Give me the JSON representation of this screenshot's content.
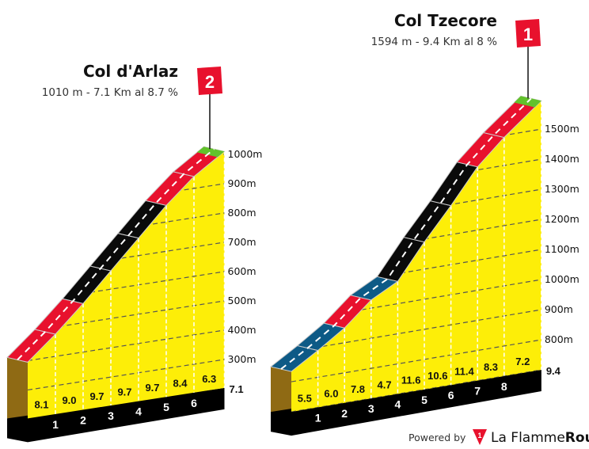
{
  "chart_data": [
    {
      "type": "area",
      "title": "Col d'Arlaz",
      "subtitle": "1010 m - 7.1 Km al 8.7 %",
      "rank": "2",
      "summit_altitude_m": 1010,
      "total_km": 7.1,
      "total_label": "7.1",
      "km_labels": [
        "1",
        "2",
        "3",
        "4",
        "5",
        "6"
      ],
      "gradients": [
        "8.1",
        "9.0",
        "9.7",
        "9.7",
        "9.7",
        "8.4",
        "6.3"
      ],
      "segment_colors": [
        "#e8112d",
        "#e8112d",
        "#0a0a0a",
        "#0a0a0a",
        "#0a0a0a",
        "#e8112d",
        "#e8112d"
      ],
      "y_ticks": [
        300,
        400,
        500,
        600,
        700,
        800,
        900,
        1000
      ],
      "y_tick_labels": [
        "300m",
        "400m",
        "500m",
        "600m",
        "700m",
        "800m",
        "900m",
        "1000m"
      ],
      "grid": true
    },
    {
      "type": "area",
      "title": "Col Tzecore",
      "subtitle": "1594 m - 9.4 Km al 8 %",
      "rank": "1",
      "summit_altitude_m": 1594,
      "total_km": 9.4,
      "total_label": "9.4",
      "km_labels": [
        "1",
        "2",
        "3",
        "4",
        "5",
        "6",
        "7",
        "8"
      ],
      "gradients": [
        "5.5",
        "6.0",
        "7.8",
        "4.7",
        "11.6",
        "10.6",
        "11.4",
        "8.3",
        "7.2"
      ],
      "segment_colors": [
        "#0d5a86",
        "#0d5a86",
        "#e8112d",
        "#0d5a86",
        "#0a0a0a",
        "#0a0a0a",
        "#0a0a0a",
        "#e8112d",
        "#e8112d"
      ],
      "y_ticks": [
        800,
        900,
        1000,
        1100,
        1200,
        1300,
        1400,
        1500
      ],
      "y_tick_labels": [
        "800m",
        "900m",
        "1000m",
        "1100m",
        "1200m",
        "1300m",
        "1400m",
        "1500m"
      ],
      "grid": true
    }
  ],
  "colors": {
    "fill": "#fdee08",
    "summit": "#62c22b",
    "base": "#000000",
    "side": "#8f6a14",
    "flag": "#e8112d"
  },
  "footer": {
    "powered_by": "Powered by",
    "brand_regular": "La Flamme",
    "brand_bold": "Rouge"
  }
}
